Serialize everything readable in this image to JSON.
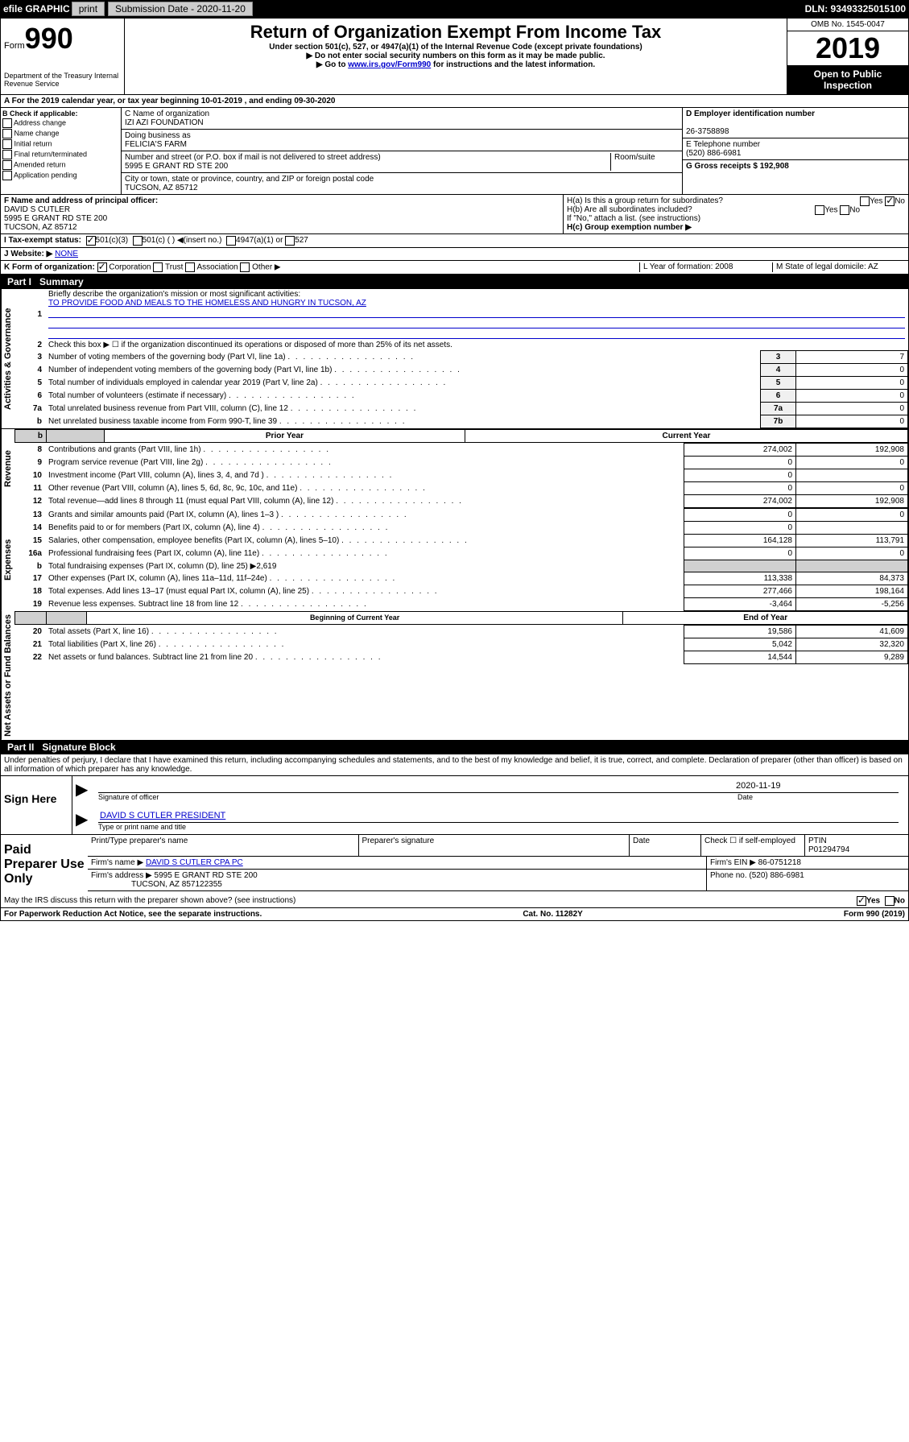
{
  "topbar": {
    "efile": "efile GRAPHIC",
    "print": "print",
    "sub_label": "Submission Date - 2020-11-20",
    "dln": "DLN: 93493325015100"
  },
  "header": {
    "form_label": "Form",
    "form_num": "990",
    "dept": "Department of the Treasury\nInternal Revenue Service",
    "title": "Return of Organization Exempt From Income Tax",
    "sub1": "Under section 501(c), 527, or 4947(a)(1) of the Internal Revenue Code (except private foundations)",
    "sub2": "▶ Do not enter social security numbers on this form as it may be made public.",
    "sub3_pre": "▶ Go to ",
    "sub3_link": "www.irs.gov/Form990",
    "sub3_post": " for instructions and the latest information.",
    "omb": "OMB No. 1545-0047",
    "year": "2019",
    "open": "Open to Public Inspection"
  },
  "period": {
    "line": "A For the 2019 calendar year, or tax year beginning 10-01-2019   , and ending 09-30-2020"
  },
  "checkB": {
    "label": "B Check if applicable:",
    "opts": [
      "Address change",
      "Name change",
      "Initial return",
      "Final return/terminated",
      "Amended return",
      "Application pending"
    ]
  },
  "orgC": {
    "name_label": "C Name of organization",
    "name": "IZI AZI FOUNDATION",
    "dba_label": "Doing business as",
    "dba": "FELICIA'S FARM",
    "addr_label": "Number and street (or P.O. box if mail is not delivered to street address)",
    "room_label": "Room/suite",
    "addr": "5995 E GRANT RD STE 200",
    "city_label": "City or town, state or province, country, and ZIP or foreign postal code",
    "city": "TUCSON, AZ  85712"
  },
  "rightD": {
    "ein_label": "D Employer identification number",
    "ein": "26-3758898",
    "phone_label": "E Telephone number",
    "phone": "(520) 886-6981",
    "gross_label": "G Gross receipts $ 192,908"
  },
  "sectionF": {
    "label": "F  Name and address of principal officer:",
    "name": "DAVID S CUTLER",
    "addr1": "5995 E GRANT RD STE 200",
    "addr2": "TUCSON, AZ  85712"
  },
  "sectionH": {
    "a": "H(a)  Is this a group return for subordinates?",
    "a_yes": "Yes",
    "a_no": "No",
    "b": "H(b)  Are all subordinates included?",
    "b_yes": "Yes",
    "b_no": "No",
    "b_note": "If \"No,\" attach a list. (see instructions)",
    "c": "H(c)  Group exemption number ▶"
  },
  "sectionI": {
    "label": "I  Tax-exempt status:",
    "opt1": "501(c)(3)",
    "opt2": "501(c) (  ) ◀(insert no.)",
    "opt3": "4947(a)(1) or",
    "opt4": "527"
  },
  "sectionJ": {
    "label": "J  Website: ▶",
    "val": "NONE"
  },
  "sectionK": {
    "label": "K Form of organization:",
    "opts": [
      "Corporation",
      "Trust",
      "Association",
      "Other ▶"
    ],
    "L_label": "L Year of formation: 2008",
    "M_label": "M State of legal domicile: AZ"
  },
  "part1": {
    "num": "Part I",
    "title": "Summary"
  },
  "sideLabels": {
    "gov": "Activities & Governance",
    "rev": "Revenue",
    "exp": "Expenses",
    "net": "Net Assets or Fund Balances"
  },
  "governance": {
    "l1": "Briefly describe the organization's mission or most significant activities:",
    "l1_val": "TO PROVIDE FOOD AND MEALS TO THE HOMELESS AND HUNGRY IN TUCSON, AZ",
    "l2": "Check this box ▶ ☐  if the organization discontinued its operations or disposed of more than 25% of its net assets.",
    "rows": [
      {
        "n": "3",
        "d": "Number of voting members of the governing body (Part VI, line 1a)",
        "k": "3",
        "v": "7"
      },
      {
        "n": "4",
        "d": "Number of independent voting members of the governing body (Part VI, line 1b)",
        "k": "4",
        "v": "0"
      },
      {
        "n": "5",
        "d": "Total number of individuals employed in calendar year 2019 (Part V, line 2a)",
        "k": "5",
        "v": "0"
      },
      {
        "n": "6",
        "d": "Total number of volunteers (estimate if necessary)",
        "k": "6",
        "v": "0"
      },
      {
        "n": "7a",
        "d": "Total unrelated business revenue from Part VIII, column (C), line 12",
        "k": "7a",
        "v": "0"
      },
      {
        "n": "b",
        "d": "Net unrelated business taxable income from Form 990-T, line 39",
        "k": "7b",
        "v": "0"
      }
    ]
  },
  "revExp": {
    "h_prior": "Prior Year",
    "h_curr": "Current Year",
    "rows": [
      {
        "n": "8",
        "d": "Contributions and grants (Part VIII, line 1h)",
        "p": "274,002",
        "c": "192,908"
      },
      {
        "n": "9",
        "d": "Program service revenue (Part VIII, line 2g)",
        "p": "0",
        "c": "0"
      },
      {
        "n": "10",
        "d": "Investment income (Part VIII, column (A), lines 3, 4, and 7d )",
        "p": "0",
        "c": ""
      },
      {
        "n": "11",
        "d": "Other revenue (Part VIII, column (A), lines 5, 6d, 8c, 9c, 10c, and 11e)",
        "p": "0",
        "c": "0"
      },
      {
        "n": "12",
        "d": "Total revenue—add lines 8 through 11 (must equal Part VIII, column (A), line 12)",
        "p": "274,002",
        "c": "192,908"
      },
      {
        "n": "13",
        "d": "Grants and similar amounts paid (Part IX, column (A), lines 1–3 )",
        "p": "0",
        "c": "0"
      },
      {
        "n": "14",
        "d": "Benefits paid to or for members (Part IX, column (A), line 4)",
        "p": "0",
        "c": ""
      },
      {
        "n": "15",
        "d": "Salaries, other compensation, employee benefits (Part IX, column (A), lines 5–10)",
        "p": "164,128",
        "c": "113,791"
      },
      {
        "n": "16a",
        "d": "Professional fundraising fees (Part IX, column (A), line 11e)",
        "p": "0",
        "c": "0"
      },
      {
        "n": "b",
        "d": "Total fundraising expenses (Part IX, column (D), line 25) ▶2,619",
        "p": "",
        "c": "",
        "grey": true
      },
      {
        "n": "17",
        "d": "Other expenses (Part IX, column (A), lines 11a–11d, 11f–24e)",
        "p": "113,338",
        "c": "84,373"
      },
      {
        "n": "18",
        "d": "Total expenses. Add lines 13–17 (must equal Part IX, column (A), line 25)",
        "p": "277,466",
        "c": "198,164"
      },
      {
        "n": "19",
        "d": "Revenue less expenses. Subtract line 18 from line 12",
        "p": "-3,464",
        "c": "-5,256"
      }
    ],
    "h2_prior": "Beginning of Current Year",
    "h2_curr": "End of Year",
    "netrows": [
      {
        "n": "20",
        "d": "Total assets (Part X, line 16)",
        "p": "19,586",
        "c": "41,609"
      },
      {
        "n": "21",
        "d": "Total liabilities (Part X, line 26)",
        "p": "5,042",
        "c": "32,320"
      },
      {
        "n": "22",
        "d": "Net assets or fund balances. Subtract line 21 from line 20",
        "p": "14,544",
        "c": "9,289"
      }
    ]
  },
  "part2": {
    "num": "Part II",
    "title": "Signature Block",
    "perjury": "Under penalties of perjury, I declare that I have examined this return, including accompanying schedules and statements, and to the best of my knowledge and belief, it is true, correct, and complete. Declaration of preparer (other than officer) is based on all information of which preparer has any knowledge."
  },
  "sign": {
    "label": "Sign Here",
    "sig_label": "Signature of officer",
    "date": "2020-11-19",
    "date_label": "Date",
    "name": "DAVID S CUTLER  PRESIDENT",
    "name_label": "Type or print name and title"
  },
  "paid": {
    "label": "Paid Preparer Use Only",
    "h1": "Print/Type preparer's name",
    "h2": "Preparer's signature",
    "h3": "Date",
    "h4_check": "Check ☐ if self-employed",
    "h5": "PTIN",
    "ptin": "P01294794",
    "firm_name_label": "Firm's name    ▶",
    "firm_name": "DAVID S CUTLER CPA PC",
    "firm_ein_label": "Firm's EIN ▶ 86-0751218",
    "firm_addr_label": "Firm's address ▶",
    "firm_addr1": "5995 E GRANT RD STE 200",
    "firm_addr2": "TUCSON, AZ  857122355",
    "phone_label": "Phone no. (520) 886-6981"
  },
  "discuss": {
    "q": "May the IRS discuss this return with the preparer shown above? (see instructions)",
    "yes": "Yes",
    "no": "No"
  },
  "footer": {
    "left": "For Paperwork Reduction Act Notice, see the separate instructions.",
    "mid": "Cat. No. 11282Y",
    "right": "Form 990 (2019)"
  }
}
